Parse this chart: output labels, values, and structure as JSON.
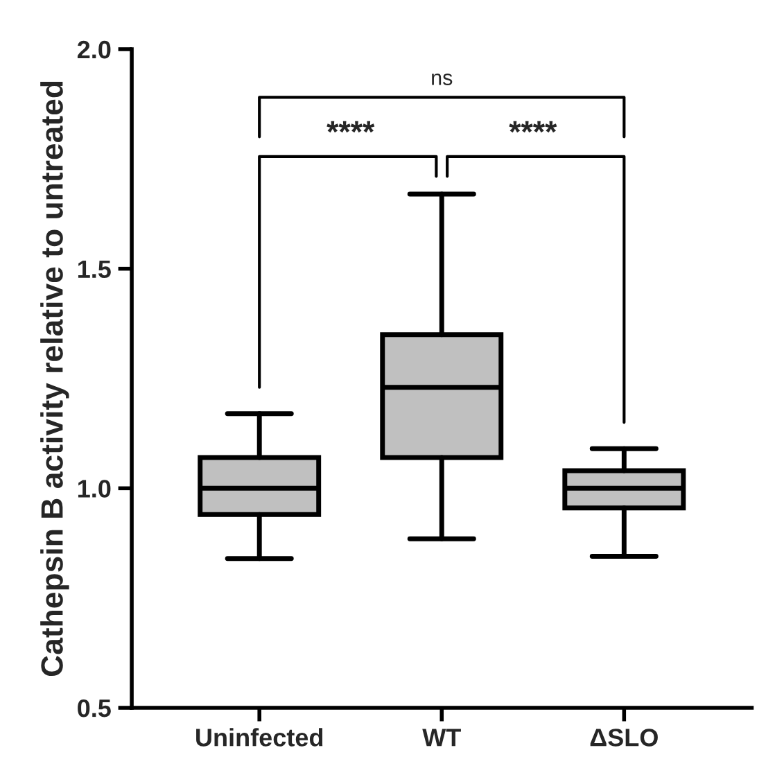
{
  "chart_data": {
    "type": "box",
    "ylabel": "Cathepsin B activity relative to untreated",
    "categories": [
      "Uninfected",
      "WT",
      "ΔSLO"
    ],
    "boxes": [
      {
        "low": 0.84,
        "q1": 0.94,
        "median": 1.0,
        "q3": 1.07,
        "high": 1.17
      },
      {
        "low": 0.885,
        "q1": 1.07,
        "median": 1.23,
        "q3": 1.35,
        "high": 1.67
      },
      {
        "low": 0.845,
        "q1": 0.955,
        "median": 1.0,
        "q3": 1.04,
        "high": 1.09
      }
    ],
    "color": "#c0c0c0",
    "ylim": [
      0.5,
      2.0
    ],
    "yticks": [
      0.5,
      {
        "value": 1.0,
        "label": "1.0"
      },
      1.5,
      {
        "value": 2.0,
        "label": "2.0"
      }
    ],
    "annotations": [
      "****",
      "****",
      "ns"
    ],
    "grid": false
  }
}
